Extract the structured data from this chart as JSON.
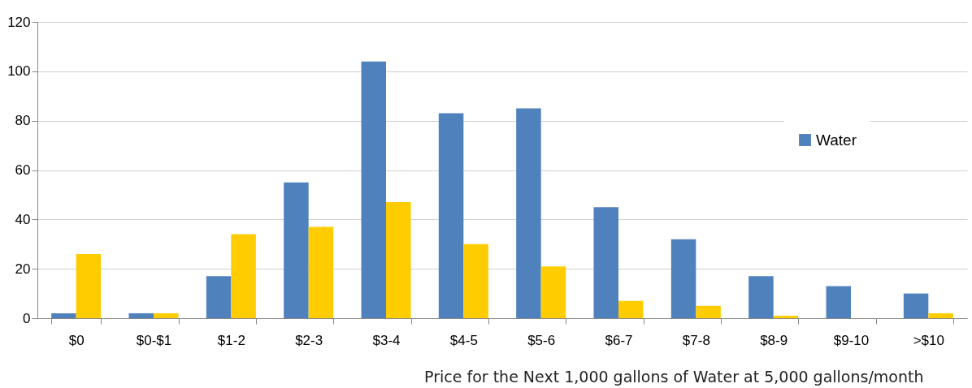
{
  "chart_data": {
    "type": "bar",
    "xlabel": "Price for the Next 1,000 gallons of Water at 5,000 gallons/month",
    "categories": [
      "$0",
      "$0-$1",
      "$1-2",
      "$2-3",
      "$3-4",
      "$4-5",
      "$5-6",
      "$6-7",
      "$7-8",
      "$8-9",
      "$9-10",
      ">$10"
    ],
    "series": [
      {
        "name": "Water",
        "color": "#4f81bd",
        "values": [
          2,
          2,
          17,
          55,
          104,
          83,
          85,
          45,
          32,
          17,
          13,
          10
        ]
      },
      {
        "color": "#ffcc00",
        "values": [
          26,
          2,
          34,
          37,
          47,
          30,
          21,
          7,
          5,
          1,
          0,
          2
        ]
      }
    ],
    "ylim": [
      0,
      120
    ],
    "yticks": [
      0,
      20,
      40,
      60,
      80,
      100,
      120
    ],
    "grid": "y",
    "legend": "top right"
  }
}
